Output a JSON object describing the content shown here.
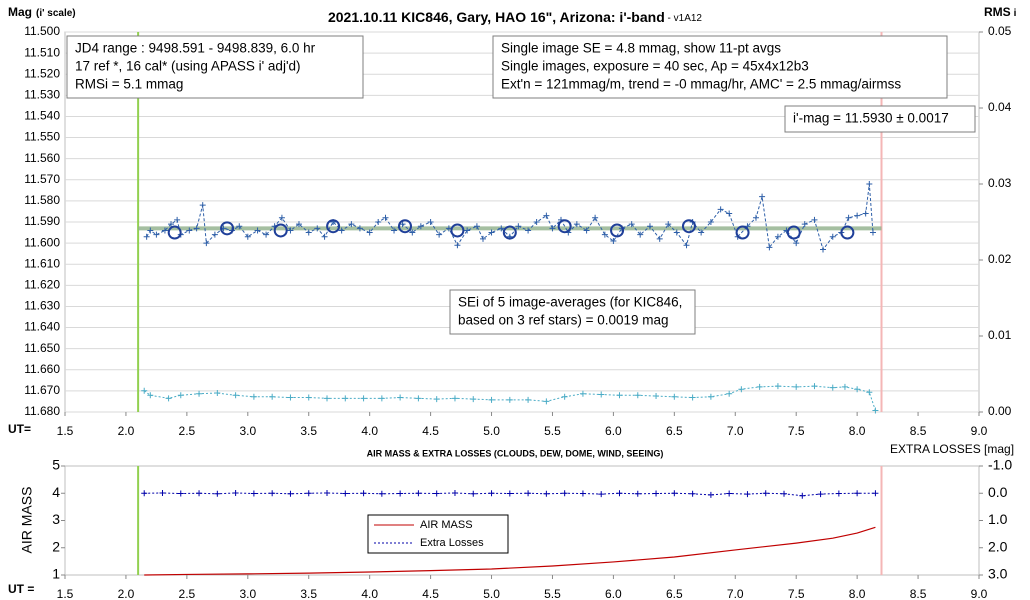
{
  "chart_data": [
    {
      "type": "line",
      "title": "2021.10.11 KIC846, Gary, HAO 16\", Arizona: i'-band",
      "title_suffix": " - v1A12",
      "y_label": "Mag",
      "y_label_note": "(i' scale)",
      "y2_label": "RMS",
      "y2_label_note": "i",
      "x_label": "UT=",
      "xlim": [
        1.5,
        9.0
      ],
      "xticks": [
        1.5,
        {
          "value": 2,
          "label": "2.0"
        },
        2.5,
        {
          "value": 3,
          "label": "3.0"
        },
        3.5,
        {
          "value": 4,
          "label": "4.0"
        },
        4.5,
        {
          "value": 5,
          "label": "5.0"
        },
        5.5,
        {
          "value": 6,
          "label": "6.0"
        },
        6.5,
        {
          "value": 7,
          "label": "7.0"
        },
        7.5,
        {
          "value": 8,
          "label": "8.0"
        },
        8.5,
        {
          "value": 9,
          "label": "9.0"
        }
      ],
      "ylim": [
        11.68,
        11.5
      ],
      "y_inverted": true,
      "yticks": [
        {
          "value": 11.5,
          "label": "11.500"
        },
        {
          "value": 11.51,
          "label": "11.510"
        },
        {
          "value": 11.52,
          "label": "11.520"
        },
        {
          "value": 11.53,
          "label": "11.530"
        },
        {
          "value": 11.54,
          "label": "11.540"
        },
        {
          "value": 11.55,
          "label": "11.550"
        },
        {
          "value": 11.56,
          "label": "11.560"
        },
        {
          "value": 11.57,
          "label": "11.570"
        },
        {
          "value": 11.58,
          "label": "11.580"
        },
        {
          "value": 11.59,
          "label": "11.590"
        },
        {
          "value": 11.6,
          "label": "11.600"
        },
        {
          "value": 11.61,
          "label": "11.610"
        },
        {
          "value": 11.62,
          "label": "11.620"
        },
        {
          "value": 11.63,
          "label": "11.630"
        },
        {
          "value": 11.64,
          "label": "11.640"
        },
        {
          "value": 11.65,
          "label": "11.650"
        },
        {
          "value": 11.66,
          "label": "11.660"
        },
        {
          "value": 11.67,
          "label": "11.670"
        },
        {
          "value": 11.68,
          "label": "11.680"
        }
      ],
      "y2lim": [
        0,
        0.05
      ],
      "y2ticks": [
        {
          "value": 0,
          "label": "0.00"
        },
        0.01,
        {
          "value": 0.02,
          "label": "0.02"
        },
        0.03,
        0.04,
        0.05
      ],
      "grid": true,
      "reference_line": {
        "value": 11.593,
        "color": "#8fb08a"
      },
      "vlines": [
        {
          "value": 2.1,
          "color": "#92d050"
        },
        {
          "value": 8.2,
          "color": "#f4b6b6"
        }
      ],
      "annotations": [
        [
          "JD4 range : 9498.591 - 9498.839, 6.0  hr",
          "17 ref *, 16 cal* (using APASS i' adj'd)",
          "RMSi = 5.1 mmag"
        ],
        [
          "Single image SE = 4.8 mmag, show 11-pt avgs",
          "Single images, exposure = 40 sec, Ap = 45x4x12b3",
          "Ext'n = 121mmag/m, trend = -0 mmag/hr, AMC' = 2.5 mmag/airmss"
        ],
        [
          "i'-mag = 11.5930 ± 0.0017"
        ],
        [
          "SEi of 5 image-averages (for KIC846,",
          "based on 3 ref stars) = 0.0019 mag"
        ]
      ],
      "series": [
        {
          "color": "#2e5fa8",
          "line": "dashed",
          "marker": "plus",
          "x": [
            2.17,
            2.2,
            2.25,
            2.32,
            2.37,
            2.42,
            2.45,
            2.52,
            2.58,
            2.63,
            2.66,
            2.73,
            2.8,
            2.87,
            2.93,
            3.0,
            3.08,
            3.15,
            3.22,
            3.28,
            3.35,
            3.42,
            3.5,
            3.57,
            3.63,
            3.7,
            3.77,
            3.85,
            3.92,
            4.0,
            4.07,
            4.13,
            4.2,
            4.27,
            4.35,
            4.42,
            4.5,
            4.57,
            4.65,
            4.72,
            4.8,
            4.88,
            4.93,
            5.0,
            5.08,
            5.15,
            5.22,
            5.3,
            5.37,
            5.45,
            5.5,
            5.57,
            5.63,
            5.7,
            5.78,
            5.85,
            5.93,
            6.0,
            6.07,
            6.15,
            6.22,
            6.3,
            6.38,
            6.45,
            6.52,
            6.6,
            6.65,
            6.72,
            6.8,
            6.88,
            6.95,
            7.02,
            7.1,
            7.17,
            7.22,
            7.28,
            7.35,
            7.42,
            7.5,
            7.57,
            7.65,
            7.72,
            7.8,
            7.87,
            7.93,
            8.0,
            8.07,
            8.1,
            8.13
          ],
          "values": [
            11.597,
            11.594,
            11.596,
            11.594,
            11.591,
            11.589,
            11.596,
            11.594,
            11.593,
            11.582,
            11.6,
            11.596,
            11.593,
            11.594,
            11.592,
            11.597,
            11.594,
            11.596,
            11.592,
            11.588,
            11.594,
            11.591,
            11.595,
            11.593,
            11.597,
            11.59,
            11.594,
            11.591,
            11.593,
            11.595,
            11.59,
            11.588,
            11.594,
            11.591,
            11.595,
            11.592,
            11.59,
            11.596,
            11.593,
            11.601,
            11.594,
            11.592,
            11.598,
            11.595,
            11.593,
            11.597,
            11.592,
            11.594,
            11.59,
            11.587,
            11.593,
            11.589,
            11.595,
            11.591,
            11.594,
            11.588,
            11.596,
            11.599,
            11.593,
            11.591,
            11.596,
            11.592,
            11.598,
            11.591,
            11.595,
            11.601,
            11.59,
            11.595,
            11.59,
            11.584,
            11.586,
            11.597,
            11.592,
            11.588,
            11.578,
            11.602,
            11.597,
            11.594,
            11.6,
            11.591,
            11.589,
            11.603,
            11.597,
            11.595,
            11.588,
            11.587,
            11.586,
            11.572,
            11.595
          ]
        },
        {
          "color": "#4bacc6",
          "line": "dotted",
          "marker": "plus",
          "axis": "y2",
          "x": [
            2.15,
            2.2,
            2.35,
            2.45,
            2.6,
            2.75,
            2.9,
            3.05,
            3.2,
            3.35,
            3.5,
            3.65,
            3.8,
            3.95,
            4.1,
            4.25,
            4.4,
            4.55,
            4.7,
            4.85,
            5.0,
            5.15,
            5.3,
            5.45,
            5.6,
            5.75,
            5.9,
            6.05,
            6.2,
            6.35,
            6.5,
            6.65,
            6.8,
            6.95,
            7.05,
            7.2,
            7.35,
            7.5,
            7.65,
            7.8,
            7.9,
            8.0,
            8.1,
            8.15
          ],
          "values": [
            0.0028,
            0.0022,
            0.0018,
            0.0022,
            0.0024,
            0.0025,
            0.0022,
            0.002,
            0.002,
            0.0019,
            0.0019,
            0.0018,
            0.0018,
            0.0018,
            0.0018,
            0.0019,
            0.0018,
            0.0017,
            0.0018,
            0.0017,
            0.0016,
            0.0016,
            0.0016,
            0.0014,
            0.002,
            0.0024,
            0.0023,
            0.0022,
            0.0022,
            0.0021,
            0.002,
            0.0019,
            0.002,
            0.0024,
            0.003,
            0.0033,
            0.0034,
            0.0033,
            0.0034,
            0.0032,
            0.0033,
            0.003,
            0.0026,
            0.0002
          ]
        },
        {
          "color": "#1f3f99",
          "line": "none",
          "marker": "circle",
          "x": [
            2.4,
            2.83,
            3.27,
            3.7,
            4.29,
            4.72,
            5.15,
            5.6,
            6.03,
            6.62,
            7.06,
            7.48,
            7.92
          ],
          "values": [
            11.595,
            11.593,
            11.594,
            11.592,
            11.592,
            11.594,
            11.595,
            11.592,
            11.594,
            11.592,
            11.595,
            11.595,
            11.595
          ]
        }
      ]
    },
    {
      "type": "line",
      "title": "AIR MASS & EXTRA LOSSES (CLOUDS, DEW, DOME, WIND, SEEING)",
      "y_label": "AIR MASS",
      "y2_label": "EXTRA LOSSES [mag]",
      "x_label": "UT =",
      "xlim": [
        1.5,
        9.0
      ],
      "xticks": [
        1.5,
        {
          "value": 2,
          "label": "2.0"
        },
        2.5,
        {
          "value": 3,
          "label": "3.0"
        },
        3.5,
        {
          "value": 4,
          "label": "4.0"
        },
        4.5,
        {
          "value": 5,
          "label": "5.0"
        },
        5.5,
        {
          "value": 6,
          "label": "6.0"
        },
        6.5,
        {
          "value": 7,
          "label": "7.0"
        },
        7.5,
        {
          "value": 8,
          "label": "8.0"
        },
        8.5,
        {
          "value": 9,
          "label": "9.0"
        }
      ],
      "ylim": [
        1,
        5
      ],
      "yticks": [
        1,
        2,
        3,
        4,
        5
      ],
      "y2lim": [
        3.0,
        -1.0
      ],
      "y2_inverted": true,
      "y2ticks": [
        {
          "value": -1,
          "label": "-1.0"
        },
        {
          "value": 0,
          "label": "0.0"
        },
        {
          "value": 1,
          "label": "1.0"
        },
        {
          "value": 2,
          "label": "2.0"
        },
        {
          "value": 3,
          "label": "3.0"
        }
      ],
      "grid": false,
      "vlines": [
        {
          "value": 2.1,
          "color": "#92d050"
        },
        {
          "value": 8.2,
          "color": "#f4b6b6"
        }
      ],
      "series": [
        {
          "name": "AIR MASS",
          "color": "#c00000",
          "line": "solid",
          "marker": "none",
          "x": [
            2.15,
            2.5,
            3.0,
            3.5,
            4.0,
            4.5,
            5.0,
            5.5,
            6.0,
            6.5,
            7.0,
            7.5,
            7.8,
            8.0,
            8.15
          ],
          "values": [
            1.0,
            1.02,
            1.04,
            1.07,
            1.11,
            1.16,
            1.22,
            1.33,
            1.48,
            1.66,
            1.92,
            2.17,
            2.35,
            2.54,
            2.75
          ]
        },
        {
          "name": "Extra Losses",
          "color": "#0000aa",
          "line": "dotted",
          "marker": "plus",
          "axis": "y2",
          "x": [
            2.15,
            2.3,
            2.45,
            2.6,
            2.75,
            2.9,
            3.05,
            3.2,
            3.35,
            3.5,
            3.65,
            3.8,
            3.95,
            4.1,
            4.25,
            4.4,
            4.55,
            4.7,
            4.85,
            5.0,
            5.15,
            5.3,
            5.45,
            5.6,
            5.75,
            5.9,
            6.05,
            6.2,
            6.35,
            6.5,
            6.65,
            6.8,
            6.95,
            7.1,
            7.25,
            7.4,
            7.55,
            7.7,
            7.85,
            8.0,
            8.15
          ],
          "values": [
            0.0,
            -0.01,
            0.01,
            0.0,
            0.02,
            -0.01,
            0.01,
            0.0,
            0.02,
            0.0,
            -0.01,
            0.01,
            0.0,
            0.02,
            0.01,
            0.0,
            0.01,
            -0.01,
            0.02,
            0.0,
            0.01,
            0.0,
            0.02,
            0.0,
            0.01,
            0.03,
            0.0,
            0.02,
            0.01,
            0.0,
            0.02,
            0.06,
            0.01,
            0.03,
            0.0,
            0.02,
            0.09,
            0.03,
            0.01,
            0.0,
            0.0
          ]
        }
      ]
    }
  ]
}
